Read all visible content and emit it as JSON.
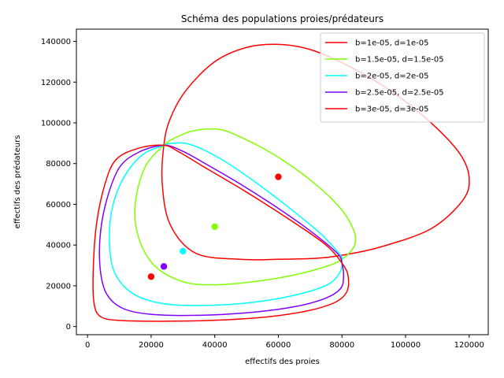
{
  "chart_data": {
    "type": "line",
    "title": "Schéma des populations proies/prédateurs",
    "xlabel": "effectifs des proies",
    "ylabel": "effectifs des prédateurs",
    "xlim": [
      -3500,
      126000
    ],
    "ylim": [
      -4000,
      146000
    ],
    "x_ticks": [
      0,
      20000,
      40000,
      60000,
      80000,
      100000,
      120000
    ],
    "y_ticks": [
      0,
      20000,
      40000,
      60000,
      80000,
      100000,
      120000,
      140000
    ],
    "grid": false,
    "legend_position": "top-right",
    "series": [
      {
        "name": "b=1e-05, d=1e-05",
        "color": "#ff0000",
        "equilibrium": [
          60000,
          73500
        ],
        "points": [
          [
            24000,
            89000
          ],
          [
            23500,
            70000
          ],
          [
            26000,
            50000
          ],
          [
            34000,
            36000
          ],
          [
            48000,
            33000
          ],
          [
            60000,
            33000
          ],
          [
            72000,
            33500
          ],
          [
            80000,
            35000
          ],
          [
            92000,
            39000
          ],
          [
            108000,
            48000
          ],
          [
            118000,
            62000
          ],
          [
            120000,
            73000
          ],
          [
            117000,
            85000
          ],
          [
            108000,
            100000
          ],
          [
            96000,
            115000
          ],
          [
            82000,
            128000
          ],
          [
            70000,
            136000
          ],
          [
            60000,
            138500
          ],
          [
            50000,
            137000
          ],
          [
            40000,
            130000
          ],
          [
            31000,
            116000
          ],
          [
            26000,
            102000
          ],
          [
            24000,
            89000
          ]
        ]
      },
      {
        "name": "b=1.5e-05, d=1.5e-05",
        "color": "#80ff00",
        "equilibrium": [
          40000,
          49000
        ],
        "points": [
          [
            24000,
            89000
          ],
          [
            18000,
            78000
          ],
          [
            15000,
            60000
          ],
          [
            16000,
            44000
          ],
          [
            21000,
            30000
          ],
          [
            30000,
            22000
          ],
          [
            40000,
            20500
          ],
          [
            52000,
            22000
          ],
          [
            64000,
            25000
          ],
          [
            74000,
            29000
          ],
          [
            80000,
            33000
          ],
          [
            84000,
            40000
          ],
          [
            83500,
            48000
          ],
          [
            79000,
            59000
          ],
          [
            70000,
            72000
          ],
          [
            58000,
            85000
          ],
          [
            46000,
            94500
          ],
          [
            40000,
            97000
          ],
          [
            33000,
            96000
          ],
          [
            28000,
            93000
          ],
          [
            24000,
            89000
          ]
        ]
      },
      {
        "name": "b=2e-05, d=2e-05",
        "color": "#00ffff",
        "equilibrium": [
          30000,
          37000
        ],
        "points": [
          [
            24000,
            89000
          ],
          [
            17000,
            84000
          ],
          [
            11000,
            72000
          ],
          [
            7500,
            56000
          ],
          [
            7000,
            38000
          ],
          [
            9000,
            25000
          ],
          [
            15000,
            15500
          ],
          [
            25000,
            11000
          ],
          [
            40000,
            10500
          ],
          [
            55000,
            12500
          ],
          [
            68000,
            16500
          ],
          [
            76000,
            21000
          ],
          [
            79500,
            27000
          ],
          [
            80000,
            33000
          ],
          [
            79000,
            36000
          ],
          [
            73000,
            46000
          ],
          [
            62000,
            60000
          ],
          [
            50000,
            74000
          ],
          [
            40000,
            84000
          ],
          [
            32000,
            89500
          ],
          [
            27000,
            90000
          ],
          [
            24000,
            89000
          ]
        ]
      },
      {
        "name": "b=2.5e-05, d=2.5e-05",
        "color": "#7f00ff",
        "equilibrium": [
          24000,
          29500
        ],
        "points": [
          [
            24000,
            89000
          ],
          [
            16000,
            85500
          ],
          [
            10000,
            78000
          ],
          [
            6000,
            62000
          ],
          [
            4000,
            45000
          ],
          [
            4000,
            28000
          ],
          [
            6000,
            16000
          ],
          [
            11000,
            9000
          ],
          [
            20000,
            6000
          ],
          [
            35000,
            5500
          ],
          [
            52000,
            7000
          ],
          [
            66000,
            10000
          ],
          [
            75000,
            14000
          ],
          [
            79500,
            18500
          ],
          [
            80500,
            24000
          ],
          [
            80000,
            31000
          ],
          [
            78500,
            36000
          ],
          [
            70000,
            47000
          ],
          [
            60000,
            58000
          ],
          [
            48000,
            70000
          ],
          [
            37000,
            80000
          ],
          [
            30000,
            86000
          ],
          [
            24000,
            89000
          ]
        ]
      },
      {
        "name": "b=3e-05, d=3e-05",
        "color": "#ff0000",
        "equilibrium": [
          20000,
          24500
        ],
        "points": [
          [
            24000,
            89000
          ],
          [
            16000,
            87500
          ],
          [
            9000,
            82000
          ],
          [
            5500,
            70000
          ],
          [
            2800,
            50000
          ],
          [
            1800,
            28000
          ],
          [
            2000,
            12000
          ],
          [
            4000,
            5000
          ],
          [
            10000,
            3000
          ],
          [
            25000,
            2600
          ],
          [
            42000,
            3200
          ],
          [
            58000,
            5000
          ],
          [
            70000,
            8000
          ],
          [
            78000,
            12000
          ],
          [
            81500,
            17000
          ],
          [
            82000,
            24000
          ],
          [
            80500,
            30000
          ],
          [
            75000,
            40000
          ],
          [
            64000,
            52000
          ],
          [
            50000,
            66000
          ],
          [
            37000,
            78000
          ],
          [
            29000,
            85500
          ],
          [
            24000,
            89000
          ]
        ]
      }
    ]
  }
}
